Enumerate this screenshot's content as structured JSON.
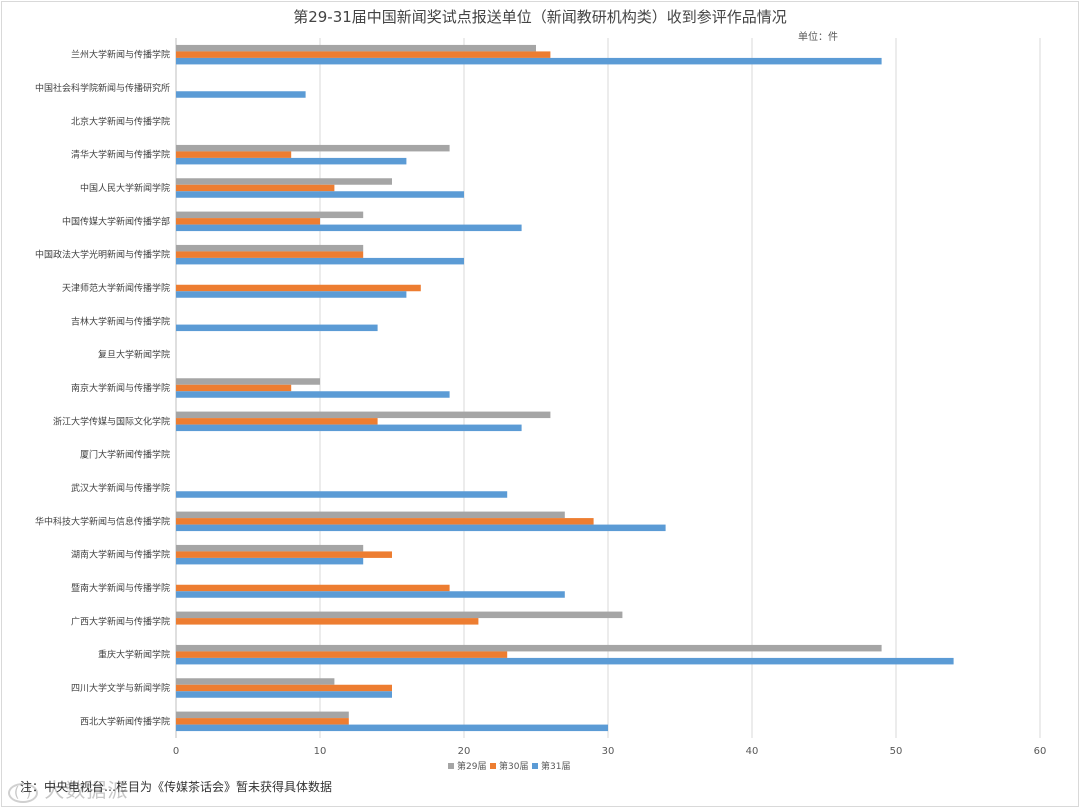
{
  "chart_data": {
    "type": "bar",
    "orientation": "horizontal",
    "title": "第29-31届中国新闻奖试点报送单位（新闻教研机构类）收到参评作品情况",
    "unit_label": "单位：件",
    "xlim": [
      0,
      60
    ],
    "x_ticks": [
      0,
      10,
      20,
      30,
      40,
      50,
      60
    ],
    "grid": true,
    "legend_position": "bottom",
    "categories": [
      "兰州大学新闻与传播学院",
      "中国社会科学院新闻与传播研究所",
      "北京大学新闻与传播学院",
      "清华大学新闻与传播学院",
      "中国人民大学新闻学院",
      "中国传媒大学新闻传播学部",
      "中国政法大学光明新闻与传播学院",
      "天津师范大学新闻传播学院",
      "吉林大学新闻与传播学院",
      "复旦大学新闻学院",
      "南京大学新闻与传播学院",
      "浙江大学传媒与国际文化学院",
      "厦门大学新闻传播学院",
      "武汉大学新闻与传播学院",
      "华中科技大学新闻与信息传播学院",
      "湖南大学新闻与传播学院",
      "暨南大学新闻与传播学院",
      "广西大学新闻与传播学院",
      "重庆大学新闻学院",
      "四川大学文学与新闻学院",
      "西北大学新闻传播学院"
    ],
    "series": [
      {
        "name": "第29届",
        "color": "#a5a5a5",
        "values": [
          25,
          0,
          0,
          19,
          15,
          13,
          13,
          0,
          0,
          0,
          10,
          26,
          0,
          0,
          27,
          13,
          0,
          31,
          49,
          11,
          12
        ]
      },
      {
        "name": "第30届",
        "color": "#ed7d31",
        "values": [
          26,
          0,
          0,
          8,
          11,
          10,
          13,
          17,
          0,
          0,
          8,
          14,
          0,
          0,
          29,
          15,
          19,
          21,
          23,
          15,
          12
        ]
      },
      {
        "name": "第31届",
        "color": "#5b9bd5",
        "values": [
          49,
          9,
          0,
          16,
          20,
          24,
          20,
          16,
          14,
          0,
          19,
          24,
          0,
          23,
          34,
          13,
          27,
          0,
          54,
          15,
          30
        ]
      }
    ],
    "footnote": "注：中央电视台…栏目为《传媒茶话会》暂未获得具体数据"
  },
  "watermark": {
    "logo": "(·)",
    "text": "大数据派"
  }
}
